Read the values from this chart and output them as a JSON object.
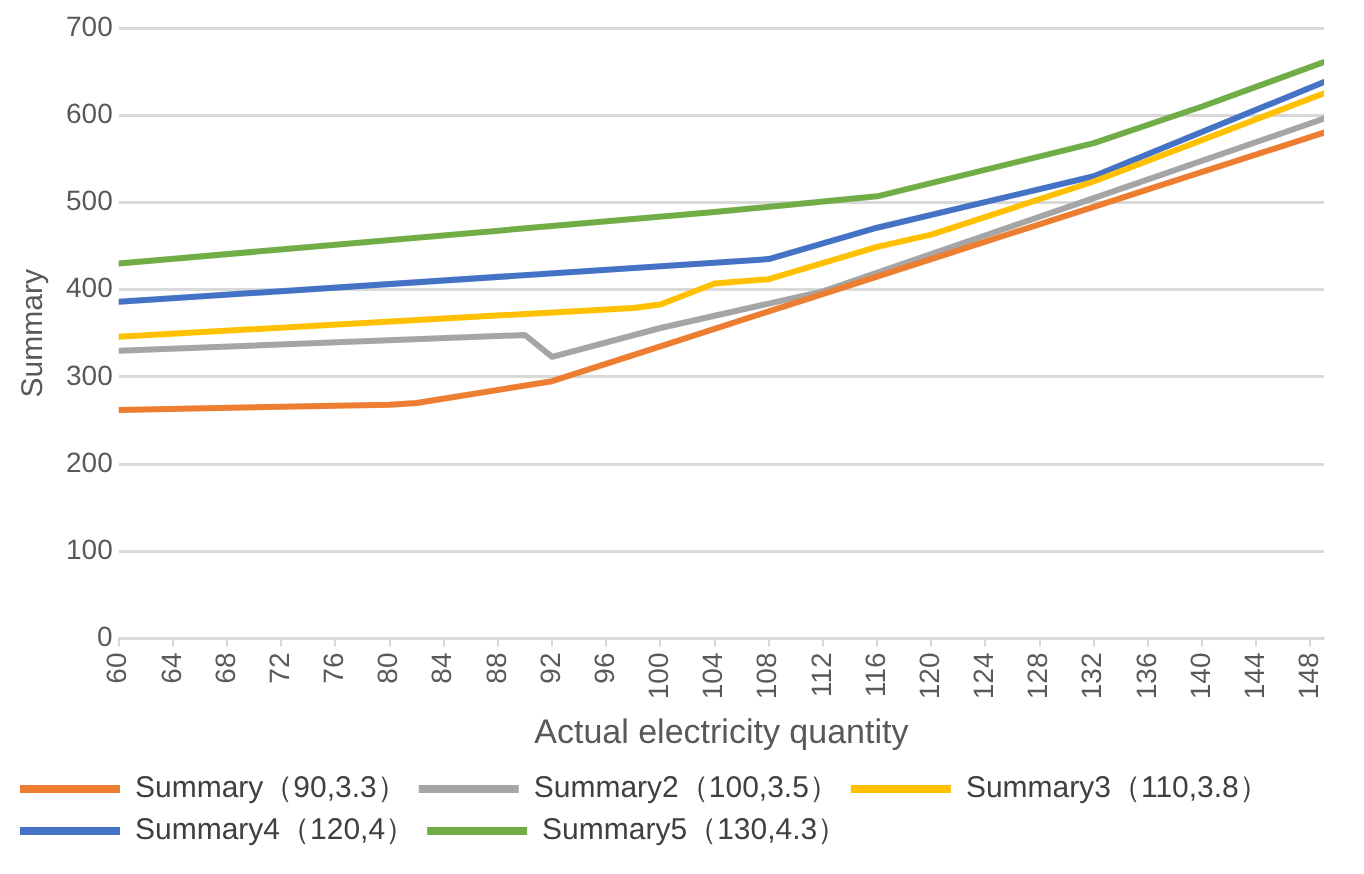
{
  "chart_data": {
    "type": "line",
    "xlabel": "Actual electricity quantity",
    "ylabel": "Summary",
    "xlim": [
      60,
      149
    ],
    "xticks": [
      60,
      64,
      68,
      72,
      76,
      80,
      84,
      88,
      92,
      96,
      100,
      104,
      108,
      112,
      116,
      120,
      124,
      128,
      132,
      136,
      140,
      144,
      148
    ],
    "ylim": [
      0,
      700
    ],
    "yticks": [
      0,
      100,
      200,
      300,
      400,
      500,
      600,
      700
    ],
    "grid": "y",
    "legend": "bottom",
    "marker": "none",
    "line_style": "solid",
    "series": [
      {
        "name": "Summary（90,3.3）",
        "color": "#ed7d31",
        "x": [
          60,
          80,
          82,
          92,
          100,
          108,
          116,
          132,
          149
        ],
        "values": [
          262,
          268,
          270,
          295,
          335,
          375,
          415,
          495,
          580
        ]
      },
      {
        "name": "Summary2（100,3.5）",
        "color": "#a5a5a5",
        "x": [
          60,
          90,
          92,
          100,
          108,
          112,
          132,
          149
        ],
        "values": [
          330,
          348,
          323,
          356,
          384,
          398,
          505,
          596
        ]
      },
      {
        "name": "Summary3（110,3.8）",
        "color": "#ffc000",
        "x": [
          60,
          98,
          100,
          104,
          108,
          116,
          120,
          132,
          149
        ],
        "values": [
          346,
          379,
          383,
          407,
          412,
          449,
          463,
          524,
          625
        ]
      },
      {
        "name": "Summary4（120,4）",
        "color": "#4472c4",
        "x": [
          60,
          108,
          116,
          132,
          149
        ],
        "values": [
          386,
          435,
          471,
          530,
          638
        ]
      },
      {
        "name": "Summary5（130,4.3）",
        "color": "#70ad47",
        "x": [
          60,
          104,
          116,
          132,
          140,
          149
        ],
        "values": [
          430,
          489,
          507,
          568,
          610,
          661
        ]
      }
    ]
  }
}
